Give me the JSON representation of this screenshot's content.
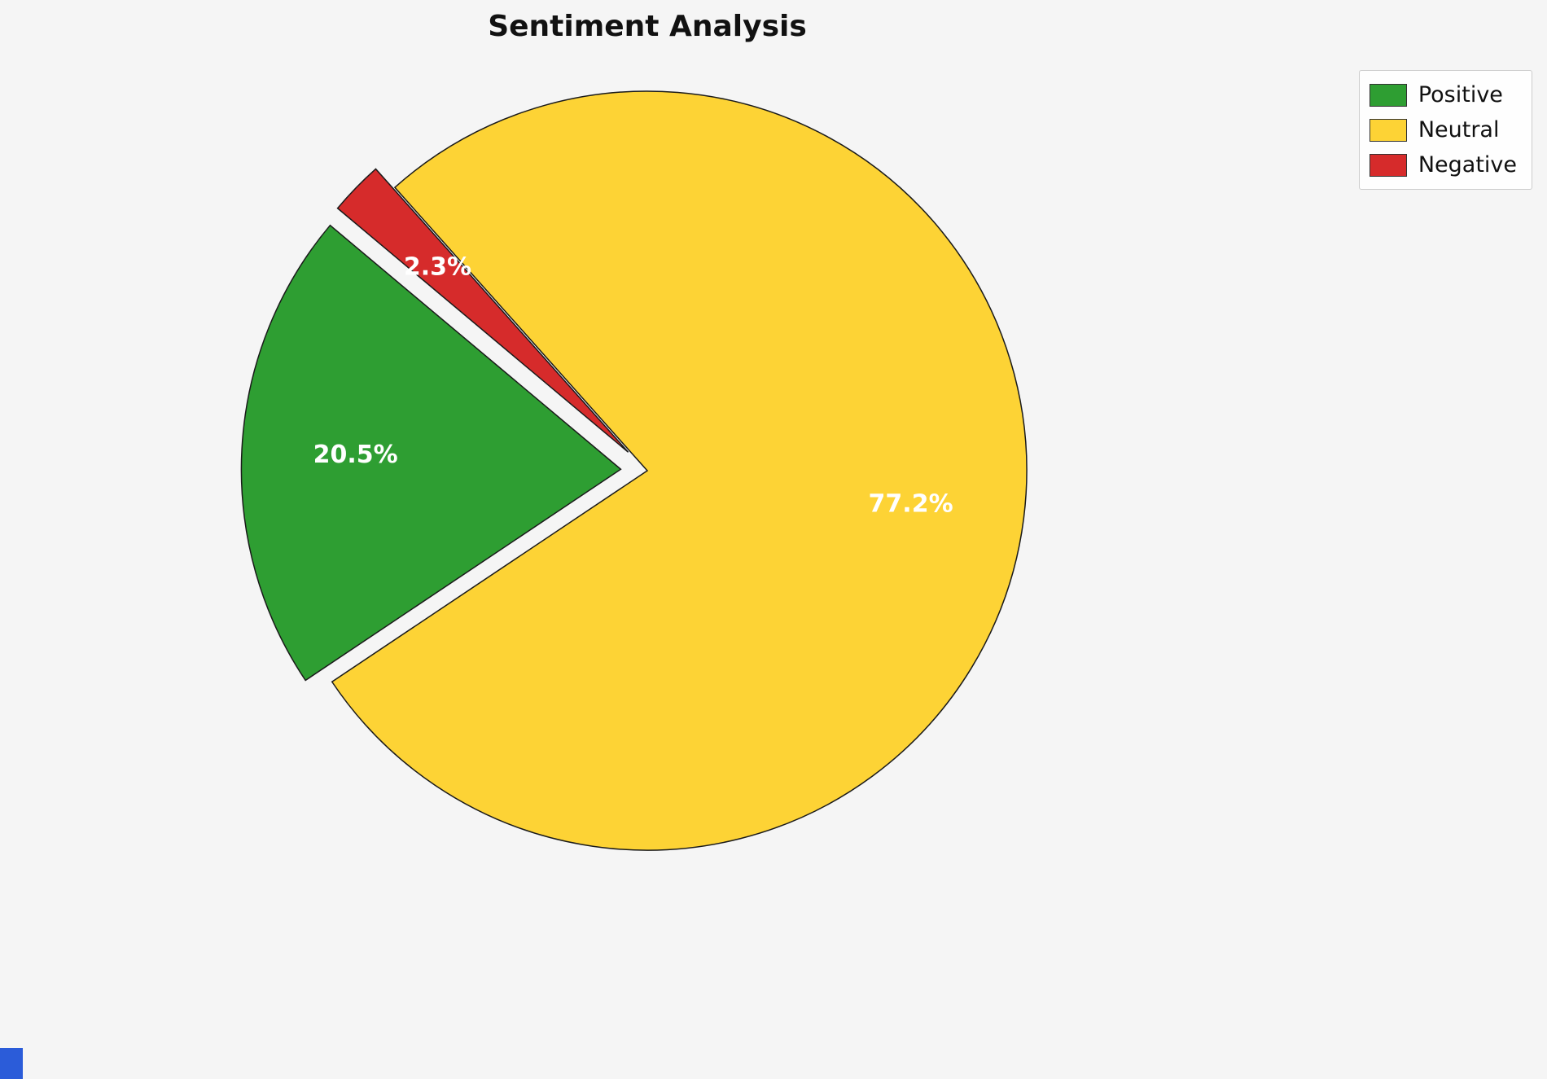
{
  "title": "Sentiment Analysis",
  "background_color": "#f5f5f5",
  "chart_data": {
    "type": "pie",
    "title": "Sentiment Analysis",
    "categories": [
      "Positive",
      "Neutral",
      "Negative"
    ],
    "values": [
      20.5,
      77.2,
      2.3
    ],
    "pct_labels": [
      "20.5%",
      "77.2%",
      "2.3%"
    ],
    "colors": [
      "#2e9e32",
      "#fdd335",
      "#d62b2b"
    ],
    "explode": [
      0.07,
      0,
      0.07
    ],
    "start_angle": 140,
    "counterclock": true,
    "pct_distance": 0.7,
    "edge_color": "#1a1a1a",
    "label_color": "#ffffff",
    "legend": {
      "position": "upper right",
      "entries": [
        "Positive",
        "Neutral",
        "Negative"
      ]
    }
  },
  "decor": {
    "corner_accent_color": "#2b5cd9"
  }
}
